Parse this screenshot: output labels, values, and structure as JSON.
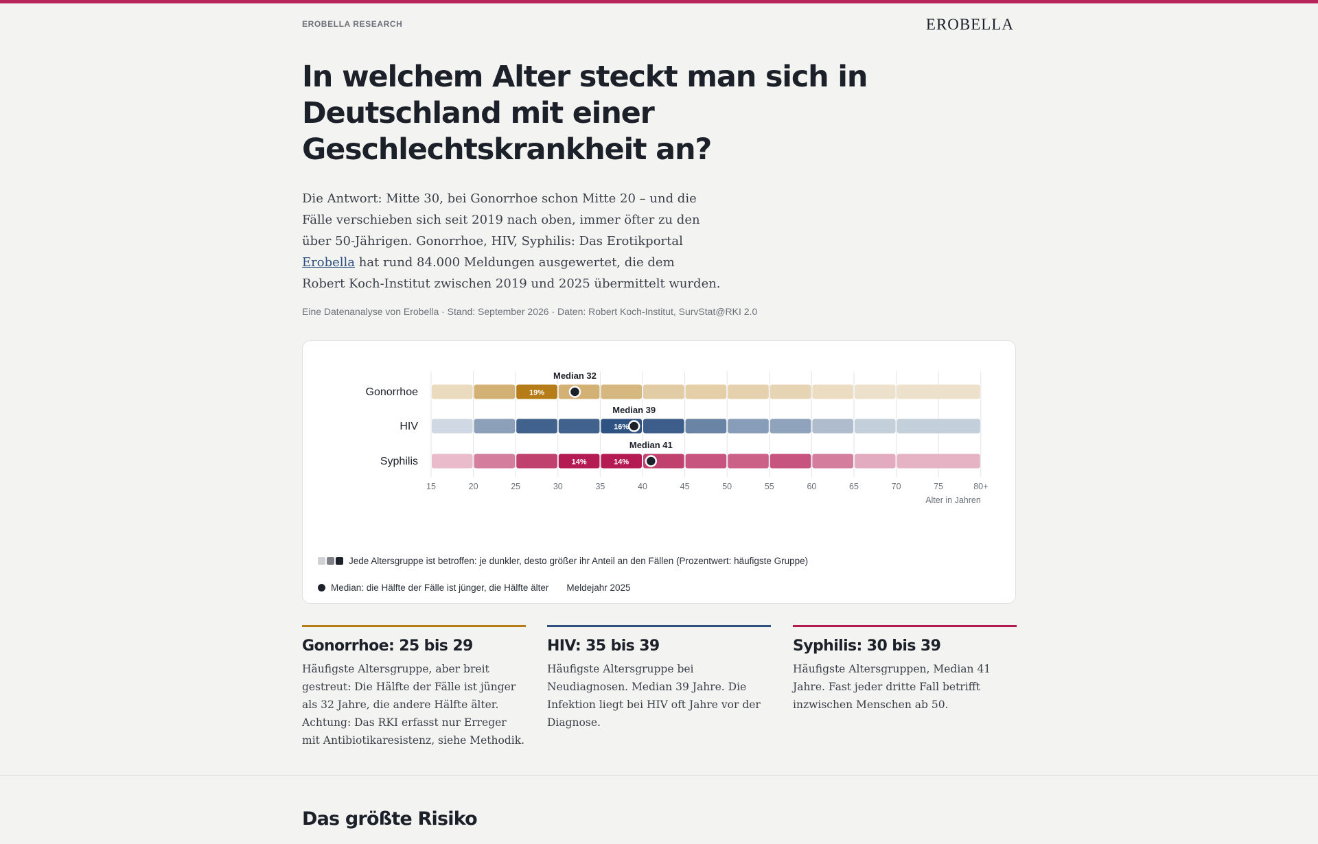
{
  "header": {
    "kicker": "EROBELLA RESEARCH",
    "logo": "EROBELLA"
  },
  "title": "In welchem Alter steckt man sich in Deutschland mit einer Geschlechtskrankheit an?",
  "lede": {
    "part1": "Die Antwort: Mitte 30, bei Gonorrhoe schon Mitte 20 – und die Fälle verschieben sich seit 2019 nach oben, immer öfter zu den über 50-Jährigen. Gonorrhoe, HIV, Syphilis: Das Erotikportal ",
    "link": "Erobella",
    "part2": " hat rund 84.000 Meldungen ausgewertet, die dem Robert Koch-Institut zwischen 2019 und 2025 übermittelt wurden."
  },
  "byline": "Eine Datenanalyse von Erobella · Stand: September 2026 · Daten: Robert Koch-Institut, SurvStat@RKI 2.0",
  "chart_data": {
    "type": "heatmap",
    "x_tick_labels": [
      "15",
      "20",
      "25",
      "30",
      "35",
      "40",
      "45",
      "50",
      "55",
      "60",
      "65",
      "70",
      "75",
      "80+"
    ],
    "xlabel": "Alter in Jahren",
    "age_groups": [
      "15-19",
      "20-24",
      "25-29",
      "30-34",
      "35-39",
      "40-44",
      "45-49",
      "50-54",
      "55-59",
      "60-64",
      "65-69",
      "70+"
    ],
    "rows": [
      {
        "name": "Gonorrhoe",
        "color": "#b57c17",
        "median": 32,
        "median_label": "Median 32",
        "peak_label": "19%",
        "shares": [
          0.2,
          0.55,
          1.0,
          0.55,
          0.5,
          0.32,
          0.3,
          0.28,
          0.25,
          0.18,
          0.14,
          0.14
        ]
      },
      {
        "name": "HIV",
        "color": "#2e5281",
        "median": 39,
        "median_label": "Median 39",
        "peak_label": "16%",
        "shares": [
          0.14,
          0.5,
          0.9,
          0.9,
          1.0,
          0.92,
          0.68,
          0.52,
          0.48,
          0.32,
          0.2,
          0.2
        ]
      },
      {
        "name": "Syphilis",
        "color": "#b41b52",
        "median": 41,
        "median_label": "Median 41",
        "peak_label": "14%",
        "shares": [
          0.22,
          0.52,
          0.82,
          1.0,
          1.0,
          0.82,
          0.72,
          0.66,
          0.72,
          0.52,
          0.3,
          0.26
        ]
      }
    ],
    "legend": {
      "shading": "Jede Altersgruppe ist betroffen: je dunkler, desto größer ihr Anteil an den Fällen (Prozentwert: häufigste Gruppe)",
      "median": "Median: die Hälfte der Fälle ist jünger, die Hälfte älter",
      "year": "Meldejahr 2025"
    }
  },
  "facts": [
    {
      "heading": "Gonorrhoe: 25 bis 29",
      "color": "#b57c17",
      "text": "Häufigste Altersgruppe, aber breit gestreut: Die Hälfte der Fälle ist jünger als 32 Jahre, die andere Hälfte älter. Achtung: Das RKI erfasst nur Erreger mit Antibiotikaresistenz, siehe Methodik."
    },
    {
      "heading": "HIV: 35 bis 39",
      "color": "#2e5281",
      "text": "Häufigste Altersgruppe bei Neudiagnosen. Median 39 Jahre. Die Infektion liegt bei HIV oft Jahre vor der Diagnose."
    },
    {
      "heading": "Syphilis: 30 bis 39",
      "color": "#b41b52",
      "text": "Häufigste Altersgruppen, Median 41 Jahre. Fast jeder dritte Fall betrifft inzwischen Menschen ab 50."
    }
  ],
  "section2": {
    "title": "Das größte Risiko"
  }
}
